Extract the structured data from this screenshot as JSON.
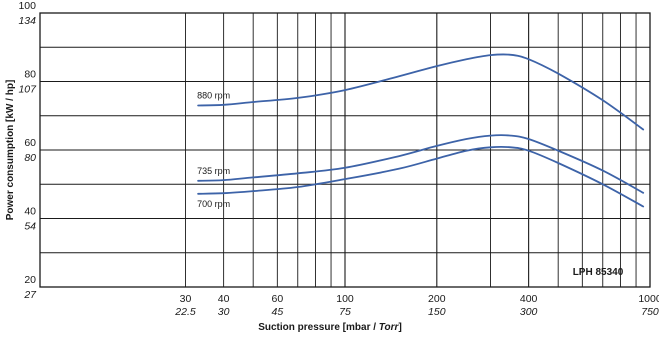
{
  "chart_data": {
    "type": "line",
    "title": "",
    "xlabel_main": "Suction pressure [mbar / ",
    "xlabel_alt": "Torr",
    "xlabel_close": "]",
    "ylabel": "Power consumption [kW / hp]",
    "model_label": "LPH 85340",
    "x_scale": "log",
    "xlim": [
      10,
      1000
    ],
    "ylim": [
      20,
      100
    ],
    "grid": true,
    "x_ticks": [
      {
        "value": 30,
        "primary": "30",
        "secondary": "22.5"
      },
      {
        "value": 40,
        "primary": "40",
        "secondary": "30"
      },
      {
        "value": 60,
        "primary": "60",
        "secondary": "45"
      },
      {
        "value": 100,
        "primary": "100",
        "secondary": "75"
      },
      {
        "value": 200,
        "primary": "200",
        "secondary": "150"
      },
      {
        "value": 400,
        "primary": "400",
        "secondary": "300"
      },
      {
        "value": 1000,
        "primary": "1000",
        "secondary": "750"
      }
    ],
    "y_ticks": [
      {
        "value": 20,
        "primary": "20",
        "secondary": "27"
      },
      {
        "value": 40,
        "primary": "40",
        "secondary": "54"
      },
      {
        "value": 60,
        "primary": "60",
        "secondary": "80"
      },
      {
        "value": 80,
        "primary": "80",
        "secondary": "107"
      },
      {
        "value": 100,
        "primary": "100",
        "secondary": "134"
      }
    ],
    "x_gridlines_minor": [
      30,
      40,
      50,
      60,
      70,
      80,
      90,
      300,
      500,
      600,
      700,
      800,
      900
    ],
    "x_gridlines_major": [
      100,
      200,
      400
    ],
    "y_gridlines": [
      30,
      40,
      50,
      60,
      70,
      80,
      90
    ],
    "series": [
      {
        "name": "880 rpm",
        "color": "#3d63a8",
        "x": [
          33,
          40,
          50,
          70,
          100,
          150,
          200,
          250,
          300,
          350,
          400,
          500,
          700,
          950
        ],
        "y": [
          73,
          73.2,
          74,
          75.2,
          77.5,
          81.5,
          84.5,
          86.5,
          87.7,
          87.8,
          86.5,
          82.3,
          74.5,
          66
        ]
      },
      {
        "name": "735 rpm",
        "color": "#3d63a8",
        "x": [
          33,
          40,
          50,
          70,
          100,
          150,
          200,
          250,
          300,
          350,
          400,
          500,
          700,
          950
        ],
        "y": [
          51,
          51.2,
          52,
          53.2,
          54.8,
          58.2,
          61.2,
          63.2,
          64.2,
          64.2,
          63.2,
          59.8,
          54,
          47.5
        ]
      },
      {
        "name": "700 rpm",
        "color": "#3d63a8",
        "x": [
          33,
          40,
          50,
          70,
          100,
          150,
          200,
          250,
          300,
          350,
          400,
          500,
          700,
          950
        ],
        "y": [
          47.2,
          47.4,
          48,
          49.2,
          51.5,
          54.5,
          57.5,
          59.8,
          60.8,
          60.8,
          59.8,
          56.2,
          50,
          43.5
        ]
      }
    ]
  }
}
